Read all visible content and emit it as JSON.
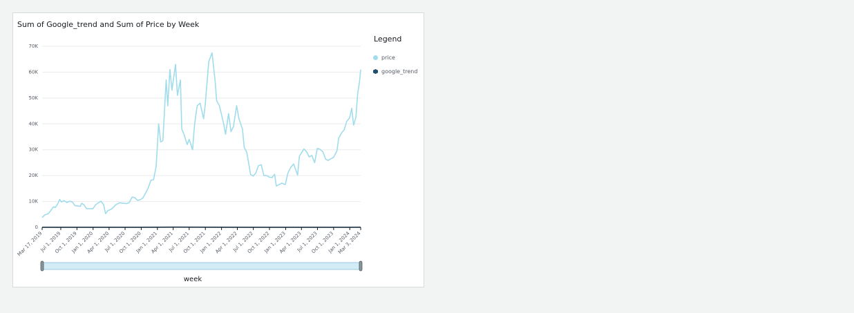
{
  "visual": {
    "title": "Sum of Google_trend and Sum of Price by Week",
    "legend": {
      "title": "Legend",
      "items": [
        {
          "label": "price",
          "color": "#a0dcec",
          "shape": "circle"
        },
        {
          "label": "google_trend",
          "color": "#1f4e6e",
          "shape": "hexagon"
        }
      ]
    }
  },
  "chart_data": {
    "type": "line",
    "title": "Sum of Google_trend and Sum of Price by Week",
    "xlabel": "week",
    "ylabel": "",
    "ylim": [
      0,
      70000
    ],
    "yticks": [
      0,
      10000,
      20000,
      30000,
      40000,
      50000,
      60000,
      70000
    ],
    "ytick_labels": [
      "0",
      "10K",
      "20K",
      "30K",
      "40K",
      "50K",
      "60K",
      "70K"
    ],
    "xlim": [
      "2019-03-17",
      "2024-03-03"
    ],
    "xticks": [
      "2019-03-17",
      "2019-07-01",
      "2019-10-01",
      "2020-01-01",
      "2020-04-01",
      "2020-07-01",
      "2020-10-01",
      "2021-01-01",
      "2021-04-01",
      "2021-07-01",
      "2021-10-01",
      "2022-01-01",
      "2022-04-01",
      "2022-07-01",
      "2022-10-01",
      "2023-01-01",
      "2023-04-01",
      "2023-07-01",
      "2023-10-01",
      "2024-01-01",
      "2024-03-03"
    ],
    "xtick_labels": [
      "Mar 17, 2019",
      "Jul 1, 2019",
      "Oct 1, 2019",
      "Jan 1, 2020",
      "Apr 1, 2020",
      "Jul 1, 2020",
      "Oct 1, 2020",
      "Jan 1, 2021",
      "Apr 1, 2021",
      "Jul 1, 2021",
      "Oct 1, 2021",
      "Jan 1, 2022",
      "Apr 1, 2022",
      "Jul 1, 2022",
      "Oct 1, 2022",
      "Jan 1, 2023",
      "Apr 1, 2023",
      "Jul 1, 2023",
      "Oct 1, 2023",
      "Jan 1, 2024",
      "Mar 3, 2024"
    ],
    "grid": true,
    "legend_position": "right",
    "series": [
      {
        "name": "price",
        "color": "#a0dcec",
        "points": [
          [
            "2019-03-17",
            3800
          ],
          [
            "2019-04-01",
            4800
          ],
          [
            "2019-04-20",
            5200
          ],
          [
            "2019-05-05",
            6500
          ],
          [
            "2019-05-20",
            7900
          ],
          [
            "2019-06-01",
            7700
          ],
          [
            "2019-06-15",
            9200
          ],
          [
            "2019-06-25",
            10800
          ],
          [
            "2019-07-05",
            9800
          ],
          [
            "2019-07-20",
            10300
          ],
          [
            "2019-08-05",
            9600
          ],
          [
            "2019-08-20",
            10100
          ],
          [
            "2019-09-05",
            9800
          ],
          [
            "2019-09-20",
            8400
          ],
          [
            "2019-10-01",
            8300
          ],
          [
            "2019-10-20",
            8100
          ],
          [
            "2019-10-28",
            9300
          ],
          [
            "2019-11-10",
            8700
          ],
          [
            "2019-11-25",
            7200
          ],
          [
            "2019-12-10",
            7200
          ],
          [
            "2019-12-31",
            7200
          ],
          [
            "2020-01-15",
            8700
          ],
          [
            "2020-02-01",
            9500
          ],
          [
            "2020-02-15",
            10100
          ],
          [
            "2020-03-01",
            8700
          ],
          [
            "2020-03-12",
            5300
          ],
          [
            "2020-03-25",
            6500
          ],
          [
            "2020-04-10",
            6900
          ],
          [
            "2020-04-25",
            7700
          ],
          [
            "2020-05-10",
            8800
          ],
          [
            "2020-06-01",
            9500
          ],
          [
            "2020-06-20",
            9300
          ],
          [
            "2020-07-10",
            9200
          ],
          [
            "2020-07-25",
            9600
          ],
          [
            "2020-08-10",
            11700
          ],
          [
            "2020-08-25",
            11500
          ],
          [
            "2020-09-10",
            10400
          ],
          [
            "2020-09-25",
            10700
          ],
          [
            "2020-10-10",
            11300
          ],
          [
            "2020-10-25",
            13100
          ],
          [
            "2020-11-10",
            15300
          ],
          [
            "2020-11-25",
            18200
          ],
          [
            "2020-12-10",
            18400
          ],
          [
            "2020-12-25",
            23500
          ],
          [
            "2021-01-08",
            40000
          ],
          [
            "2021-01-20",
            33000
          ],
          [
            "2021-02-01",
            33500
          ],
          [
            "2021-02-10",
            44800
          ],
          [
            "2021-02-20",
            57000
          ],
          [
            "2021-03-01",
            47000
          ],
          [
            "2021-03-13",
            61000
          ],
          [
            "2021-03-25",
            53000
          ],
          [
            "2021-04-14",
            63000
          ],
          [
            "2021-04-25",
            51000
          ],
          [
            "2021-05-12",
            57000
          ],
          [
            "2021-05-20",
            38000
          ],
          [
            "2021-06-01",
            36000
          ],
          [
            "2021-06-20",
            32000
          ],
          [
            "2021-07-01",
            34000
          ],
          [
            "2021-07-20",
            30000
          ],
          [
            "2021-08-01",
            40000
          ],
          [
            "2021-08-15",
            47000
          ],
          [
            "2021-09-01",
            48000
          ],
          [
            "2021-09-21",
            42000
          ],
          [
            "2021-10-01",
            48000
          ],
          [
            "2021-10-20",
            64000
          ],
          [
            "2021-11-08",
            67500
          ],
          [
            "2021-11-25",
            57000
          ],
          [
            "2021-12-04",
            49000
          ],
          [
            "2021-12-20",
            47000
          ],
          [
            "2022-01-10",
            41000
          ],
          [
            "2022-01-24",
            36000
          ],
          [
            "2022-02-10",
            44000
          ],
          [
            "2022-02-24",
            37000
          ],
          [
            "2022-03-10",
            39000
          ],
          [
            "2022-03-28",
            47000
          ],
          [
            "2022-04-10",
            42000
          ],
          [
            "2022-04-30",
            38000
          ],
          [
            "2022-05-10",
            31000
          ],
          [
            "2022-05-25",
            29000
          ],
          [
            "2022-06-15",
            20500
          ],
          [
            "2022-06-30",
            19800
          ],
          [
            "2022-07-15",
            21000
          ],
          [
            "2022-07-30",
            23800
          ],
          [
            "2022-08-15",
            24200
          ],
          [
            "2022-08-30",
            20000
          ],
          [
            "2022-09-15",
            20000
          ],
          [
            "2022-09-30",
            19400
          ],
          [
            "2022-10-15",
            19200
          ],
          [
            "2022-10-30",
            20500
          ],
          [
            "2022-11-09",
            16000
          ],
          [
            "2022-11-25",
            16500
          ],
          [
            "2022-12-10",
            17100
          ],
          [
            "2022-12-30",
            16500
          ],
          [
            "2023-01-14",
            21000
          ],
          [
            "2023-01-30",
            23200
          ],
          [
            "2023-02-15",
            24500
          ],
          [
            "2023-03-10",
            20200
          ],
          [
            "2023-03-20",
            27500
          ],
          [
            "2023-04-15",
            30300
          ],
          [
            "2023-04-30",
            29200
          ],
          [
            "2023-05-15",
            27200
          ],
          [
            "2023-05-30",
            27800
          ],
          [
            "2023-06-15",
            25000
          ],
          [
            "2023-06-30",
            30500
          ],
          [
            "2023-07-15",
            30200
          ],
          [
            "2023-08-01",
            29200
          ],
          [
            "2023-08-17",
            26300
          ],
          [
            "2023-09-01",
            25900
          ],
          [
            "2023-09-15",
            26500
          ],
          [
            "2023-09-30",
            27000
          ],
          [
            "2023-10-20",
            29600
          ],
          [
            "2023-10-30",
            34500
          ],
          [
            "2023-11-15",
            36500
          ],
          [
            "2023-11-30",
            37700
          ],
          [
            "2023-12-15",
            41000
          ],
          [
            "2023-12-31",
            42300
          ],
          [
            "2024-01-12",
            46000
          ],
          [
            "2024-01-23",
            39500
          ],
          [
            "2024-02-05",
            42500
          ],
          [
            "2024-02-15",
            51800
          ],
          [
            "2024-02-25",
            56000
          ],
          [
            "2024-03-03",
            61000
          ]
        ]
      },
      {
        "name": "google_trend",
        "color": "#1f4e6e",
        "points": [
          [
            "2019-03-17",
            25
          ],
          [
            "2019-09-01",
            20
          ],
          [
            "2020-03-01",
            18
          ],
          [
            "2020-09-01",
            20
          ],
          [
            "2021-01-08",
            60
          ],
          [
            "2021-05-01",
            80
          ],
          [
            "2021-11-01",
            55
          ],
          [
            "2022-06-01",
            30
          ],
          [
            "2023-01-01",
            20
          ],
          [
            "2023-07-01",
            18
          ],
          [
            "2024-01-01",
            30
          ],
          [
            "2024-03-03",
            45
          ]
        ]
      }
    ]
  },
  "range_selector": {
    "start": "2019-03-17",
    "end": "2024-03-03"
  }
}
